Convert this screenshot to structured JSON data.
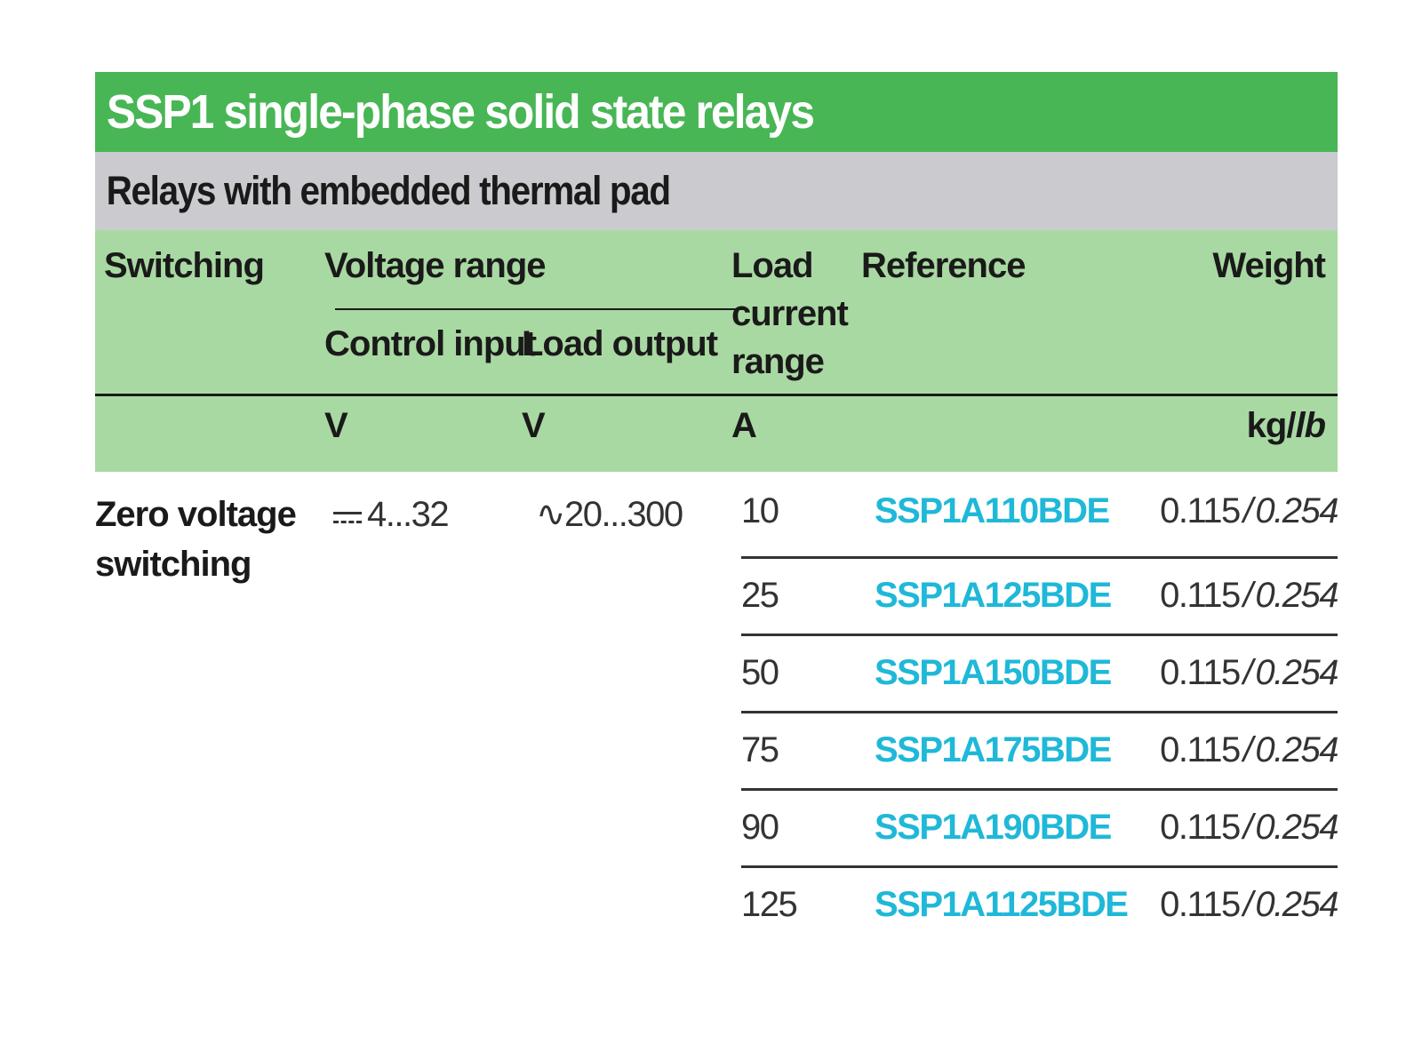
{
  "title": "SSP1 single-phase solid state relays",
  "subtitle": "Relays with embedded thermal pad",
  "headers": {
    "switching": "Switching",
    "voltage_range": "Voltage range",
    "control_input": "Control input",
    "load_output": "Load output",
    "load_current_line1": "Load",
    "load_current_line2": "current",
    "load_current_line3": "range",
    "reference": "Reference",
    "weight": "Weight"
  },
  "units": {
    "control_input": "V",
    "load_output": "V",
    "load_current": "A",
    "weight_kg": "kg/",
    "weight_lb": "lb"
  },
  "switching": {
    "line1": "Zero voltage",
    "line2": "switching"
  },
  "control_input_value": "4...32",
  "load_output_value": "∿20...300",
  "rows": [
    {
      "current": "10",
      "reference": "SSP1A110BDE",
      "weight_kg": "0.115",
      "weight_lb": "0.254"
    },
    {
      "current": "25",
      "reference": "SSP1A125BDE",
      "weight_kg": "0.115",
      "weight_lb": "0.254"
    },
    {
      "current": "50",
      "reference": "SSP1A150BDE",
      "weight_kg": "0.115",
      "weight_lb": "0.254"
    },
    {
      "current": "75",
      "reference": "SSP1A175BDE",
      "weight_kg": "0.115",
      "weight_lb": "0.254"
    },
    {
      "current": "90",
      "reference": "SSP1A190BDE",
      "weight_kg": "0.115",
      "weight_lb": "0.254"
    },
    {
      "current": "125",
      "reference": "SSP1A1125BDE",
      "weight_kg": "0.115",
      "weight_lb": "0.254"
    }
  ],
  "colors": {
    "title_bg": "#48b655",
    "subtitle_bg": "#cbcbcf",
    "header_bg": "#a9d9a2",
    "reference_link": "#1fb8d8"
  }
}
